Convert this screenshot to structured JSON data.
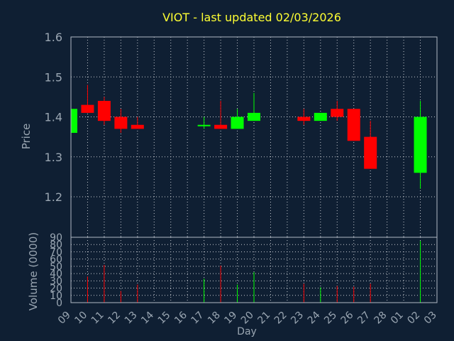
{
  "chart_data": {
    "type": "candlestick",
    "title": "VIOT - last updated 02/03/2026",
    "xlabel": "Day",
    "price_panel": {
      "ylabel": "Price",
      "ylim": [
        1.2,
        1.6
      ],
      "yticks": [
        "1.6",
        "1.5",
        "1.4",
        "1.3",
        "1.2"
      ],
      "grid": true
    },
    "volume_panel": {
      "ylabel": "Volume (0000)",
      "ylim": [
        0,
        90
      ],
      "yticks": [
        "90",
        "80",
        "70",
        "60",
        "50",
        "40",
        "30",
        "20",
        "10",
        "0"
      ],
      "grid": true
    },
    "x_ticks": [
      "09",
      "10",
      "11",
      "12",
      "13",
      "14",
      "15",
      "16",
      "17",
      "18",
      "19",
      "20",
      "21",
      "22",
      "23",
      "24",
      "25",
      "26",
      "27",
      "28",
      "01",
      "02",
      "03"
    ],
    "candles": [
      {
        "x": "09",
        "open": 1.36,
        "high": 1.42,
        "low": 1.36,
        "close": 1.42,
        "volume": 0
      },
      {
        "x": "10",
        "open": 1.43,
        "high": 1.48,
        "low": 1.41,
        "close": 1.41,
        "volume": 36
      },
      {
        "x": "11",
        "open": 1.44,
        "high": 1.45,
        "low": 1.38,
        "close": 1.39,
        "volume": 52
      },
      {
        "x": "12",
        "open": 1.4,
        "high": 1.42,
        "low": 1.36,
        "close": 1.37,
        "volume": 16
      },
      {
        "x": "13",
        "open": 1.38,
        "high": 1.4,
        "low": 1.37,
        "close": 1.37,
        "volume": 25
      },
      {
        "x": "17",
        "open": 1.38,
        "high": 1.4,
        "low": 1.37,
        "close": 1.38,
        "volume": 33
      },
      {
        "x": "18",
        "open": 1.38,
        "high": 1.44,
        "low": 1.37,
        "close": 1.37,
        "volume": 51
      },
      {
        "x": "19",
        "open": 1.37,
        "high": 1.42,
        "low": 1.37,
        "close": 1.4,
        "volume": 25
      },
      {
        "x": "20",
        "open": 1.39,
        "high": 1.46,
        "low": 1.39,
        "close": 1.41,
        "volume": 42
      },
      {
        "x": "23",
        "open": 1.4,
        "high": 1.42,
        "low": 1.38,
        "close": 1.39,
        "volume": 26
      },
      {
        "x": "24",
        "open": 1.39,
        "high": 1.41,
        "low": 1.39,
        "close": 1.41,
        "volume": 21
      },
      {
        "x": "25",
        "open": 1.42,
        "high": 1.44,
        "low": 1.39,
        "close": 1.4,
        "volume": 23
      },
      {
        "x": "26",
        "open": 1.42,
        "high": 1.42,
        "low": 1.34,
        "close": 1.34,
        "volume": 22
      },
      {
        "x": "27",
        "open": 1.35,
        "high": 1.39,
        "low": 1.27,
        "close": 1.27,
        "volume": 26
      },
      {
        "x": "02",
        "open": 1.26,
        "high": 1.44,
        "low": 1.22,
        "close": 1.4,
        "volume": 85
      }
    ],
    "colors": {
      "up": "#00ff00",
      "down": "#ff0000",
      "background": "#0f1f33",
      "axes": "#b0b8c4",
      "text": "#9aa6b2",
      "title": "#ffff33",
      "grid": "#c8ccd2"
    }
  }
}
